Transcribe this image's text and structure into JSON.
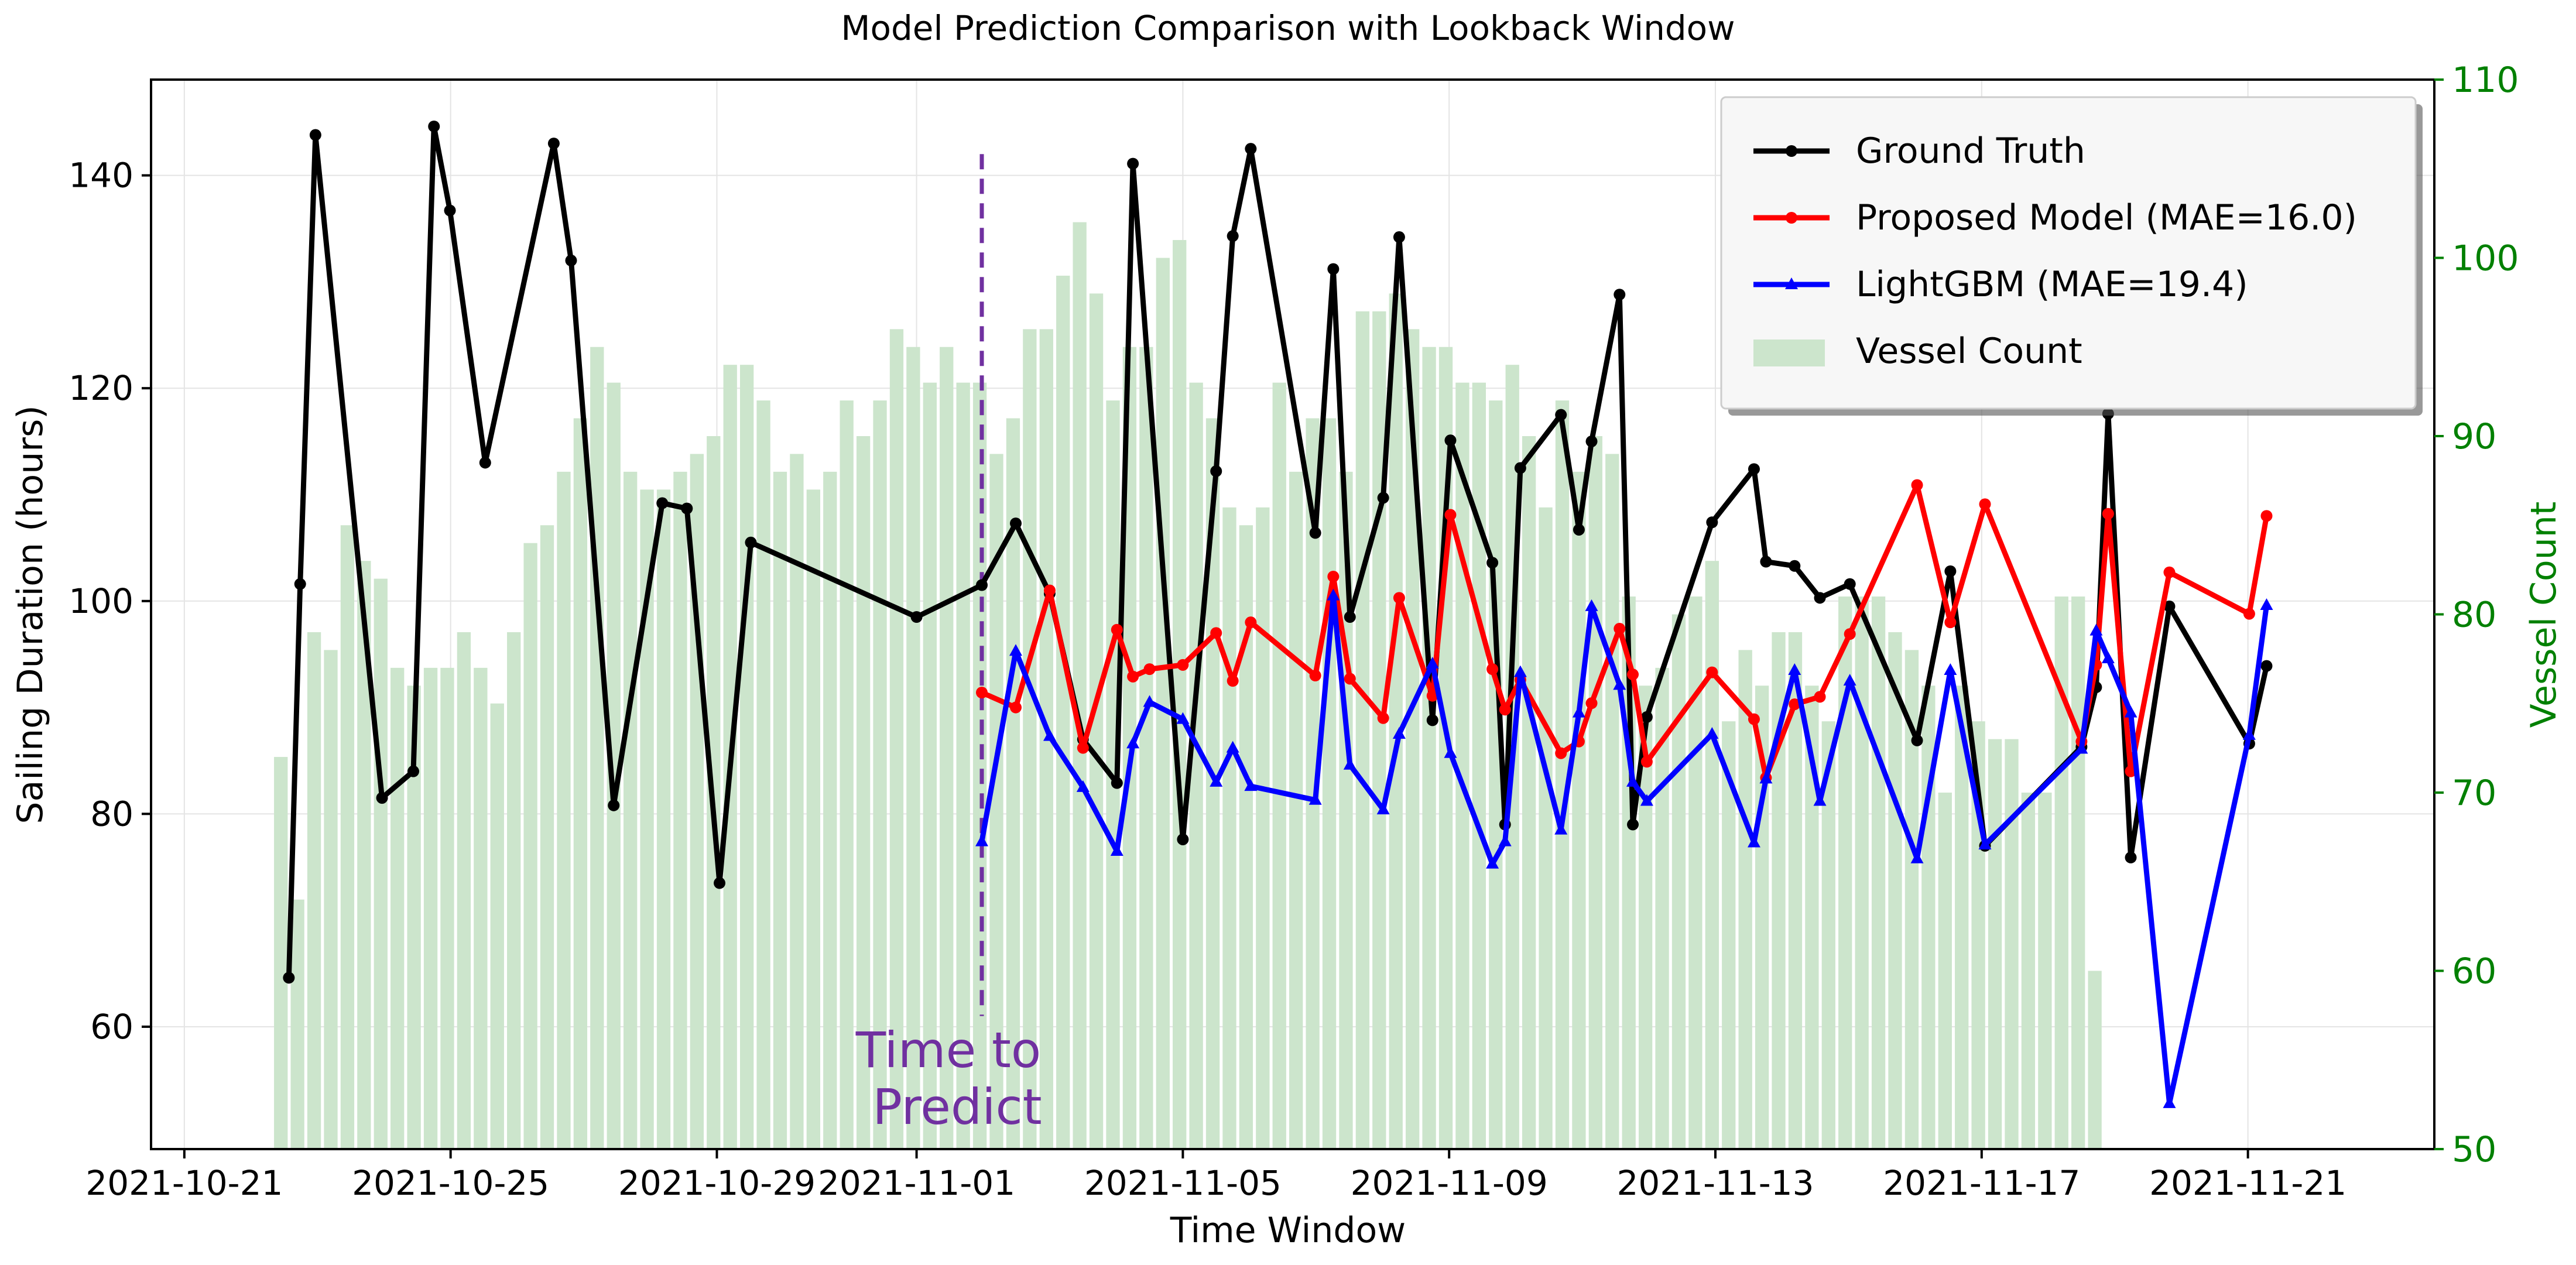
{
  "chart_data": {
    "type": "line",
    "title": "Model Prediction Comparison with Lookback Window",
    "xlabel": "Time Window",
    "ylabel": "Sailing Duration (hours)",
    "ylabel_right": "Vessel Count",
    "xlim_days": [
      -0.5,
      33.8
    ],
    "ylim": [
      48.5,
      149
    ],
    "ylim_right": [
      50,
      110
    ],
    "x_ticks": [
      {
        "day": 0,
        "label": "2021-10-21"
      },
      {
        "day": 4,
        "label": "2021-10-25"
      },
      {
        "day": 8,
        "label": "2021-10-29"
      },
      {
        "day": 11,
        "label": "2021-11-01"
      },
      {
        "day": 15,
        "label": "2021-11-05"
      },
      {
        "day": 19,
        "label": "2021-11-09"
      },
      {
        "day": 23,
        "label": "2021-11-13"
      },
      {
        "day": 27,
        "label": "2021-11-17"
      },
      {
        "day": 31,
        "label": "2021-11-21"
      }
    ],
    "y_ticks": [
      60,
      80,
      100,
      120,
      140
    ],
    "y_ticks_right": [
      50,
      60,
      70,
      80,
      90,
      100,
      110
    ],
    "grid": true,
    "legend_position": "top-right",
    "annotation": {
      "text_lines": [
        "Time to",
        "Predict"
      ],
      "day": 11.98,
      "color": "#7030a0"
    },
    "colors": {
      "ground_truth": "#000000",
      "proposed": "#ff0000",
      "lightgbm": "#0000ff",
      "bars": "#cce5cc",
      "right_axis": "#008000",
      "annotation": "#7030a0"
    },
    "series": [
      {
        "name": "Ground Truth",
        "key": "ground_truth",
        "x": [
          1.57,
          1.74,
          1.97,
          2.97,
          3.44,
          3.75,
          3.99,
          4.52,
          5.55,
          5.81,
          6.45,
          7.18,
          7.55,
          8.04,
          8.51,
          11.0,
          11.98,
          12.49,
          13.0,
          13.5,
          14.01,
          14.25,
          15.0,
          15.5,
          15.75,
          16.02,
          16.99,
          17.26,
          17.51,
          18.01,
          18.25,
          18.75,
          19.02,
          19.65,
          19.84,
          20.07,
          20.68,
          20.95,
          21.14,
          21.56,
          21.76,
          21.97,
          22.95,
          23.58,
          23.76,
          24.19,
          24.57,
          25.02,
          26.03,
          26.53,
          27.05,
          28.5,
          28.72,
          28.9,
          29.24,
          29.82,
          31.02,
          31.28
        ],
        "values": [
          64.6,
          101.6,
          143.8,
          81.5,
          84.0,
          144.6,
          136.7,
          113.0,
          143.0,
          132.0,
          80.8,
          109.2,
          108.7,
          73.5,
          105.5,
          98.5,
          101.5,
          107.3,
          100.7,
          87.0,
          82.9,
          141.1,
          77.6,
          112.2,
          134.3,
          142.5,
          106.4,
          131.2,
          98.5,
          109.7,
          134.2,
          88.8,
          115.1,
          103.6,
          79.0,
          112.5,
          117.5,
          106.7,
          115.0,
          128.8,
          79.0,
          89.1,
          107.4,
          112.4,
          103.7,
          103.3,
          100.3,
          101.6,
          86.9,
          102.8,
          77.0,
          86.3,
          91.9,
          117.6,
          75.9,
          99.5,
          86.6,
          93.9
        ]
      },
      {
        "name": "Proposed Model (MAE=16.0)",
        "key": "proposed",
        "x": [
          11.98,
          12.49,
          13.0,
          13.5,
          14.01,
          14.25,
          14.5,
          15.0,
          15.5,
          15.75,
          16.02,
          16.99,
          17.26,
          17.51,
          18.01,
          18.25,
          18.75,
          19.02,
          19.65,
          19.84,
          20.07,
          20.68,
          20.95,
          21.14,
          21.56,
          21.76,
          21.97,
          22.95,
          23.58,
          23.76,
          24.19,
          24.57,
          25.02,
          26.03,
          26.53,
          27.05,
          28.5,
          28.72,
          28.9,
          29.24,
          29.82,
          31.02,
          31.28
        ],
        "values": [
          91.4,
          90.0,
          101.0,
          86.2,
          97.3,
          92.9,
          93.6,
          94.0,
          97.0,
          92.5,
          98.0,
          93.0,
          102.3,
          92.7,
          89.0,
          100.3,
          91.1,
          108.1,
          93.6,
          89.8,
          92.6,
          85.7,
          86.8,
          90.4,
          97.4,
          93.1,
          84.9,
          93.3,
          88.9,
          83.4,
          90.3,
          91.0,
          96.9,
          110.9,
          98.0,
          109.1,
          86.8,
          94.0,
          108.2,
          84.0,
          102.7,
          98.8,
          108.0
        ]
      },
      {
        "name": "LightGBM (MAE=19.4)",
        "key": "lightgbm",
        "x": [
          11.98,
          12.49,
          13.0,
          13.5,
          14.01,
          14.25,
          14.5,
          15.0,
          15.5,
          15.75,
          16.02,
          16.99,
          17.26,
          17.51,
          18.01,
          18.25,
          18.75,
          19.02,
          19.65,
          19.84,
          20.07,
          20.68,
          20.95,
          21.14,
          21.56,
          21.76,
          21.97,
          22.95,
          23.58,
          23.76,
          24.19,
          24.57,
          25.02,
          26.03,
          26.53,
          27.05,
          28.5,
          28.72,
          28.9,
          29.24,
          29.82,
          31.02,
          31.28
        ],
        "values": [
          77.4,
          95.3,
          87.3,
          82.5,
          76.5,
          86.6,
          90.5,
          88.9,
          83.0,
          86.2,
          82.6,
          81.3,
          100.5,
          84.6,
          80.4,
          87.5,
          94.1,
          85.7,
          75.3,
          77.4,
          93.3,
          78.5,
          89.5,
          99.5,
          92.1,
          83.0,
          81.2,
          87.5,
          77.3,
          83.3,
          93.5,
          81.2,
          92.5,
          75.8,
          93.5,
          77.1,
          86.1,
          97.2,
          94.6,
          89.5,
          52.8,
          87.4,
          99.6
        ]
      }
    ],
    "bars": {
      "name": "Vessel Count",
      "start_day": 1.45,
      "step_days": 0.25,
      "values": [
        72,
        64,
        79,
        78,
        85,
        83,
        82,
        77,
        76,
        77,
        77,
        79,
        77,
        75,
        79,
        84,
        85,
        88,
        91,
        95,
        93,
        88,
        87,
        87,
        88,
        89,
        90,
        94,
        94,
        92,
        88,
        89,
        87,
        88,
        92,
        90,
        92,
        96,
        95,
        93,
        95,
        93,
        93,
        89,
        91,
        96,
        96,
        99,
        102,
        98,
        92,
        95,
        95,
        100,
        101,
        93,
        91,
        86,
        85,
        86,
        93,
        88,
        91,
        91,
        88,
        97,
        97,
        98,
        96,
        95,
        95,
        93,
        93,
        92,
        94,
        90,
        86,
        92,
        88,
        90,
        89,
        81,
        76,
        77,
        80,
        81,
        83,
        74,
        78,
        76,
        79,
        79,
        76,
        74,
        81,
        81,
        81,
        79,
        78,
        76,
        70,
        76,
        74,
        73,
        73,
        70,
        70,
        81,
        81,
        60
      ]
    }
  }
}
